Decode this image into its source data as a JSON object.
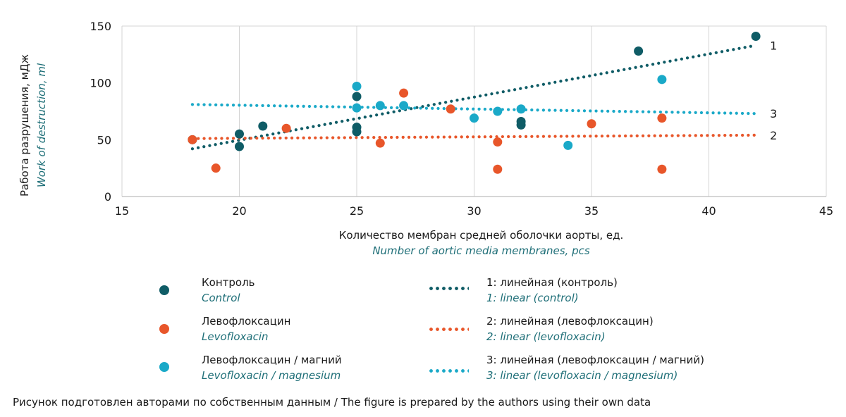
{
  "chart_data": {
    "type": "scatter",
    "ylabel_ru": "Работа разрушения, мДж",
    "ylabel_en": "Work of destruction, ml",
    "xlabel_ru": "Количество мембран средней оболочки аорты, ед.",
    "xlabel_en": "Number of aortic media membranes, pcs",
    "xlim": [
      15,
      45
    ],
    "ylim": [
      0,
      150
    ],
    "x_ticks": [
      15,
      20,
      25,
      30,
      35,
      40,
      45
    ],
    "y_ticks": [
      0,
      50,
      100,
      150
    ],
    "grid": "vertical",
    "series": [
      {
        "name_ru": "Контроль",
        "name_en": "Control",
        "color": "#0f5c66",
        "points": [
          [
            18,
            50
          ],
          [
            20,
            55
          ],
          [
            20,
            44
          ],
          [
            21,
            62
          ],
          [
            25,
            88
          ],
          [
            25,
            61
          ],
          [
            25,
            57
          ],
          [
            32,
            63
          ],
          [
            32,
            66
          ],
          [
            37,
            128
          ],
          [
            42,
            141
          ]
        ]
      },
      {
        "name_ru": "Левофлоксацин",
        "name_en": "Levofloxacin",
        "color": "#e8562a",
        "points": [
          [
            18,
            50
          ],
          [
            19,
            25
          ],
          [
            22,
            60
          ],
          [
            26,
            47
          ],
          [
            27,
            91
          ],
          [
            29,
            77
          ],
          [
            31,
            48
          ],
          [
            31,
            24
          ],
          [
            35,
            64
          ],
          [
            38,
            69
          ],
          [
            38,
            24
          ]
        ]
      },
      {
        "name_ru": "Левофлоксацин / магний",
        "name_en": "Levofloxacin / magnesium",
        "color": "#1aa9c8",
        "points": [
          [
            25,
            97
          ],
          [
            25,
            78
          ],
          [
            26,
            80
          ],
          [
            27,
            80
          ],
          [
            30,
            69
          ],
          [
            31,
            75
          ],
          [
            32,
            77
          ],
          [
            34,
            45
          ],
          [
            38,
            103
          ]
        ]
      }
    ],
    "trendlines": [
      {
        "id": "1",
        "name_ru": "1: линейная (контроль)",
        "name_en": "1: linear (control)",
        "color": "#0f5c66",
        "x": [
          18,
          42
        ],
        "y": [
          42,
          133
        ]
      },
      {
        "id": "2",
        "name_ru": "2: линейная (левофлоксацин)",
        "name_en": "2: linear (levofloxacin)",
        "color": "#e8562a",
        "x": [
          18,
          42
        ],
        "y": [
          51,
          54
        ]
      },
      {
        "id": "3",
        "name_ru": "3: линейная (левофлоксацин / магний)",
        "name_en": "3: linear (levofloxacin / magnesium)",
        "color": "#1aa9c8",
        "x": [
          18,
          42
        ],
        "y": [
          81,
          73
        ]
      }
    ]
  },
  "caption": "Рисунок подготовлен авторами по собственным данным / The figure is prepared by the authors using their own data"
}
